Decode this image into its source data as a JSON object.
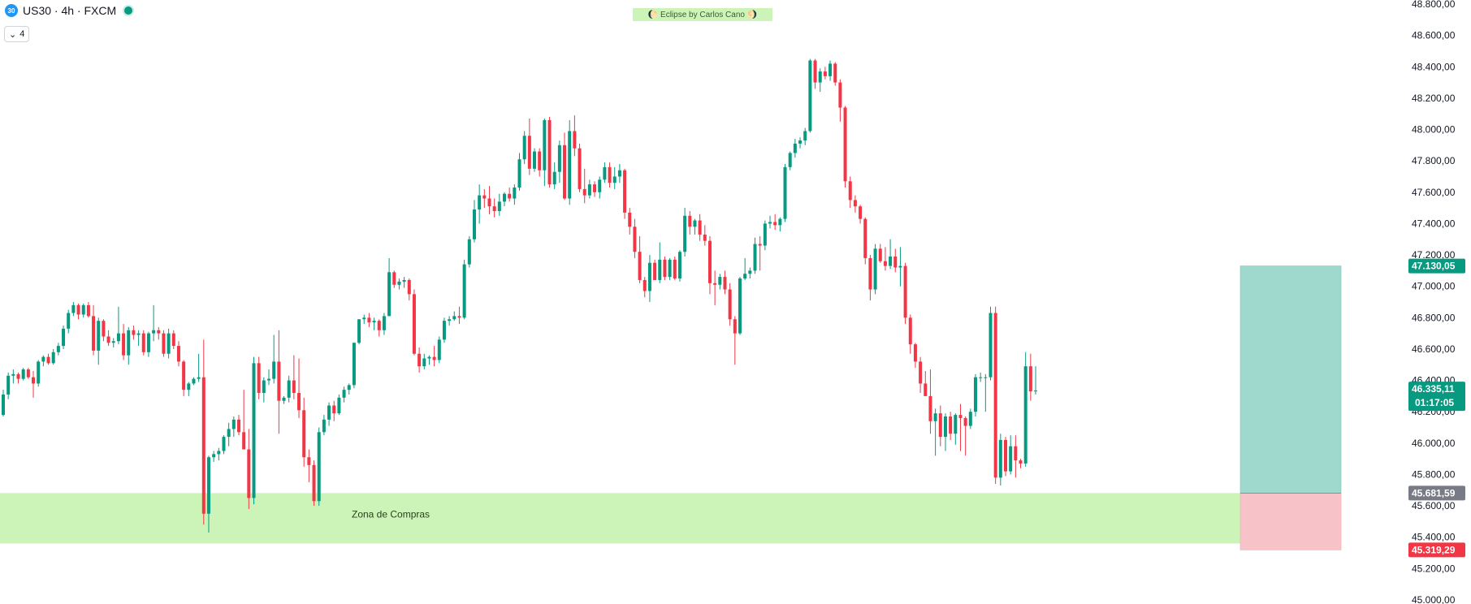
{
  "header": {
    "symbol_badge": "30",
    "title": "US30 · 4h · FXCM",
    "indicator_toggle": "4"
  },
  "watermark": "🌔 Eclipse by Carlos Cano 🌖",
  "colors": {
    "up": "#089981",
    "down": "#f23645",
    "zone_fill": "#cdf4b8",
    "target_fill": "#9fd9cd",
    "stop_fill": "#f8c3c8"
  },
  "chart_data": {
    "type": "candlestick",
    "symbol": "US30",
    "timeframe": "4h",
    "y_axis": {
      "range": [
        45000,
        48800
      ],
      "ticks": [
        "45.000,00",
        "45.200,00",
        "45.400,00",
        "45.600,00",
        "45.800,00",
        "46.000,00",
        "46.200,00",
        "46.400,00",
        "46.600,00",
        "46.800,00",
        "47.000,00",
        "47.200,00",
        "47.400,00",
        "47.600,00",
        "47.800,00",
        "48.000,00",
        "48.200,00",
        "48.400,00",
        "48.600,00",
        "48.800,00"
      ]
    },
    "price_labels": {
      "target": {
        "value": 47130.05,
        "text": "47.130,05",
        "color": "#089981"
      },
      "current": {
        "value": 46335.11,
        "text": "46.335,11",
        "countdown": "01:17:05",
        "color": "#089981"
      },
      "entry": {
        "value": 45681.59,
        "text": "45.681,59",
        "color": "#787b86"
      },
      "stop": {
        "value": 45319.29,
        "text": "45.319,29",
        "color": "#f23645"
      }
    },
    "zone": {
      "label": "Zona de Compras",
      "top": 45681.59,
      "bottom": 45360
    },
    "position": {
      "entry": 45681.59,
      "target": 47130.05,
      "stop": 45319.29
    },
    "ohlc": [
      [
        46180,
        46340,
        46170,
        46310
      ],
      [
        46310,
        46450,
        46280,
        46430
      ],
      [
        46430,
        46470,
        46380,
        46440
      ],
      [
        46440,
        46450,
        46380,
        46410
      ],
      [
        46410,
        46480,
        46400,
        46470
      ],
      [
        46470,
        46480,
        46410,
        46420
      ],
      [
        46420,
        46460,
        46290,
        46380
      ],
      [
        46380,
        46530,
        46360,
        46520
      ],
      [
        46520,
        46560,
        46490,
        46550
      ],
      [
        46550,
        46570,
        46500,
        46510
      ],
      [
        46510,
        46600,
        46500,
        46580
      ],
      [
        46580,
        46640,
        46560,
        46620
      ],
      [
        46620,
        46750,
        46600,
        46730
      ],
      [
        46730,
        46850,
        46700,
        46830
      ],
      [
        46830,
        46900,
        46810,
        46880
      ],
      [
        46880,
        46890,
        46790,
        46820
      ],
      [
        46820,
        46890,
        46800,
        46880
      ],
      [
        46880,
        46900,
        46800,
        46810
      ],
      [
        46810,
        46880,
        46560,
        46590
      ],
      [
        46590,
        46800,
        46500,
        46780
      ],
      [
        46780,
        46790,
        46650,
        46680
      ],
      [
        46680,
        46720,
        46620,
        46640
      ],
      [
        46640,
        46670,
        46610,
        46650
      ],
      [
        46650,
        46870,
        46630,
        46700
      ],
      [
        46700,
        46760,
        46530,
        46560
      ],
      [
        46560,
        46740,
        46500,
        46720
      ],
      [
        46720,
        46750,
        46660,
        46690
      ],
      [
        46690,
        46720,
        46620,
        46700
      ],
      [
        46700,
        46720,
        46560,
        46580
      ],
      [
        46580,
        46710,
        46550,
        46700
      ],
      [
        46700,
        46880,
        46650,
        46720
      ],
      [
        46720,
        46740,
        46660,
        46700
      ],
      [
        46700,
        46720,
        46550,
        46570
      ],
      [
        46570,
        46730,
        46540,
        46700
      ],
      [
        46700,
        46720,
        46600,
        46620
      ],
      [
        46620,
        46650,
        46490,
        46520
      ],
      [
        46520,
        46530,
        46300,
        46340
      ],
      [
        46340,
        46390,
        46300,
        46380
      ],
      [
        46380,
        46420,
        46370,
        46410
      ],
      [
        46410,
        46570,
        46390,
        46420
      ],
      [
        46420,
        46660,
        45480,
        45550
      ],
      [
        45550,
        45920,
        45430,
        45910
      ],
      [
        45910,
        45950,
        45880,
        45930
      ],
      [
        45930,
        45970,
        45890,
        45950
      ],
      [
        45950,
        46050,
        45930,
        46040
      ],
      [
        46040,
        46130,
        45980,
        46090
      ],
      [
        46090,
        46170,
        46040,
        46150
      ],
      [
        46150,
        46180,
        46050,
        46070
      ],
      [
        46070,
        46340,
        45980,
        45960
      ],
      [
        45960,
        46090,
        45580,
        45650
      ],
      [
        45650,
        46550,
        45610,
        46510
      ],
      [
        46510,
        46550,
        46280,
        46320
      ],
      [
        46320,
        46420,
        46260,
        46400
      ],
      [
        46400,
        46470,
        46370,
        46410
      ],
      [
        46410,
        46690,
        46380,
        46520
      ],
      [
        46520,
        46720,
        46060,
        46270
      ],
      [
        46270,
        46300,
        46250,
        46290
      ],
      [
        46290,
        46430,
        46260,
        46400
      ],
      [
        46400,
        46560,
        46280,
        46320
      ],
      [
        46320,
        46540,
        46160,
        46210
      ],
      [
        46210,
        46290,
        45850,
        45910
      ],
      [
        45910,
        45960,
        45750,
        45860
      ],
      [
        45860,
        45890,
        45600,
        45630
      ],
      [
        45630,
        46100,
        45600,
        46070
      ],
      [
        46070,
        46180,
        46050,
        46150
      ],
      [
        46150,
        46260,
        46110,
        46240
      ],
      [
        46240,
        46270,
        46140,
        46190
      ],
      [
        46190,
        46310,
        46180,
        46290
      ],
      [
        46290,
        46360,
        46260,
        46340
      ],
      [
        46340,
        46380,
        46310,
        46370
      ],
      [
        46370,
        46640,
        46350,
        46640
      ],
      [
        46640,
        46790,
        46630,
        46790
      ],
      [
        46790,
        46820,
        46760,
        46800
      ],
      [
        46800,
        46830,
        46740,
        46770
      ],
      [
        46770,
        46800,
        46720,
        46780
      ],
      [
        46780,
        46790,
        46680,
        46720
      ],
      [
        46720,
        46830,
        46690,
        46810
      ],
      [
        46810,
        47180,
        46810,
        47090
      ],
      [
        47090,
        47100,
        46990,
        47010
      ],
      [
        47010,
        47050,
        46980,
        47030
      ],
      [
        47030,
        47060,
        46990,
        47040
      ],
      [
        47040,
        47050,
        46910,
        46950
      ],
      [
        46950,
        46980,
        46560,
        46570
      ],
      [
        46570,
        46610,
        46450,
        46490
      ],
      [
        46490,
        46570,
        46470,
        46540
      ],
      [
        46540,
        46560,
        46500,
        46550
      ],
      [
        46550,
        46620,
        46490,
        46530
      ],
      [
        46530,
        46680,
        46510,
        46660
      ],
      [
        46660,
        46800,
        46640,
        46780
      ],
      [
        46780,
        46810,
        46750,
        46790
      ],
      [
        46790,
        46840,
        46780,
        46810
      ],
      [
        46810,
        46870,
        46760,
        46800
      ],
      [
        46800,
        47170,
        46790,
        47140
      ],
      [
        47140,
        47320,
        47120,
        47300
      ],
      [
        47300,
        47550,
        47280,
        47490
      ],
      [
        47490,
        47650,
        47400,
        47580
      ],
      [
        47580,
        47620,
        47500,
        47560
      ],
      [
        47560,
        47640,
        47460,
        47510
      ],
      [
        47510,
        47560,
        47440,
        47480
      ],
      [
        47480,
        47590,
        47450,
        47540
      ],
      [
        47540,
        47600,
        47510,
        47590
      ],
      [
        47590,
        47630,
        47540,
        47560
      ],
      [
        47560,
        47650,
        47520,
        47630
      ],
      [
        47630,
        47850,
        47610,
        47810
      ],
      [
        47810,
        47990,
        47780,
        47960
      ],
      [
        47960,
        48070,
        47710,
        47750
      ],
      [
        47750,
        47880,
        47730,
        47860
      ],
      [
        47860,
        47880,
        47700,
        47740
      ],
      [
        47740,
        48070,
        47640,
        48060
      ],
      [
        48060,
        48080,
        47630,
        47650
      ],
      [
        47650,
        47790,
        47620,
        47730
      ],
      [
        47730,
        47930,
        47660,
        47900
      ],
      [
        47900,
        47980,
        47550,
        47560
      ],
      [
        47560,
        48060,
        47520,
        47990
      ],
      [
        47990,
        48090,
        47830,
        47880
      ],
      [
        47880,
        47910,
        47600,
        47620
      ],
      [
        47620,
        47750,
        47530,
        47580
      ],
      [
        47580,
        47680,
        47560,
        47650
      ],
      [
        47650,
        47670,
        47570,
        47600
      ],
      [
        47600,
        47700,
        47560,
        47680
      ],
      [
        47680,
        47790,
        47660,
        47760
      ],
      [
        47760,
        47790,
        47630,
        47660
      ],
      [
        47660,
        47760,
        47620,
        47700
      ],
      [
        47700,
        47780,
        47660,
        47740
      ],
      [
        47740,
        47750,
        47430,
        47470
      ],
      [
        47470,
        47500,
        47330,
        47380
      ],
      [
        47380,
        47430,
        47180,
        47220
      ],
      [
        47220,
        47320,
        47020,
        47040
      ],
      [
        47040,
        47060,
        46930,
        46970
      ],
      [
        46970,
        47200,
        46900,
        47150
      ],
      [
        47150,
        47170,
        47040,
        47040
      ],
      [
        47040,
        47280,
        47020,
        47170
      ],
      [
        47170,
        47190,
        47040,
        47060
      ],
      [
        47060,
        47180,
        47040,
        47170
      ],
      [
        47170,
        47190,
        47040,
        47050
      ],
      [
        47050,
        47230,
        47030,
        47220
      ],
      [
        47220,
        47500,
        47190,
        47450
      ],
      [
        47450,
        47480,
        47330,
        47380
      ],
      [
        47380,
        47430,
        47330,
        47420
      ],
      [
        47420,
        47460,
        47290,
        47330
      ],
      [
        47330,
        47390,
        47260,
        47290
      ],
      [
        47290,
        47320,
        46950,
        47020
      ],
      [
        47020,
        47100,
        46880,
        47010
      ],
      [
        47010,
        47080,
        46980,
        47060
      ],
      [
        47060,
        47100,
        46950,
        46980
      ],
      [
        46980,
        47020,
        46750,
        46790
      ],
      [
        46790,
        46810,
        46500,
        46700
      ],
      [
        46700,
        47060,
        46690,
        47050
      ],
      [
        47050,
        47180,
        47040,
        47080
      ],
      [
        47080,
        47120,
        47050,
        47100
      ],
      [
        47100,
        47310,
        47080,
        47270
      ],
      [
        47270,
        47320,
        47100,
        47260
      ],
      [
        47260,
        47420,
        47230,
        47400
      ],
      [
        47400,
        47450,
        47370,
        47410
      ],
      [
        47410,
        47460,
        47360,
        47390
      ],
      [
        47390,
        47440,
        47350,
        47430
      ],
      [
        47430,
        47780,
        47410,
        47760
      ],
      [
        47760,
        47860,
        47740,
        47850
      ],
      [
        47850,
        47940,
        47820,
        47910
      ],
      [
        47910,
        47950,
        47880,
        47930
      ],
      [
        47930,
        48010,
        47900,
        47990
      ],
      [
        47990,
        48450,
        47980,
        48440
      ],
      [
        48440,
        48450,
        48260,
        48300
      ],
      [
        48300,
        48390,
        48240,
        48370
      ],
      [
        48370,
        48400,
        48320,
        48340
      ],
      [
        48340,
        48440,
        48310,
        48420
      ],
      [
        48420,
        48430,
        48280,
        48300
      ],
      [
        48300,
        48320,
        48050,
        48140
      ],
      [
        48140,
        48150,
        47630,
        47670
      ],
      [
        47670,
        47700,
        47500,
        47550
      ],
      [
        47550,
        47580,
        47470,
        47510
      ],
      [
        47510,
        47520,
        47400,
        47430
      ],
      [
        47430,
        47440,
        47140,
        47180
      ],
      [
        47180,
        47200,
        46910,
        46980
      ],
      [
        46980,
        47270,
        46950,
        47240
      ],
      [
        47240,
        47270,
        47150,
        47160
      ],
      [
        47160,
        47250,
        47100,
        47130
      ],
      [
        47130,
        47300,
        47110,
        47190
      ],
      [
        47190,
        47240,
        47090,
        47120
      ],
      [
        47120,
        47250,
        47000,
        47130
      ],
      [
        47130,
        47150,
        46760,
        46800
      ],
      [
        46800,
        46820,
        46570,
        46630
      ],
      [
        46630,
        46640,
        46480,
        46520
      ],
      [
        46520,
        46550,
        46320,
        46380
      ],
      [
        46380,
        46460,
        46300,
        46300
      ],
      [
        46300,
        46470,
        46060,
        46140
      ],
      [
        46140,
        46220,
        45920,
        46190
      ],
      [
        46190,
        46240,
        45980,
        46040
      ],
      [
        46040,
        46190,
        45950,
        46170
      ],
      [
        46170,
        46200,
        46020,
        46060
      ],
      [
        46060,
        46190,
        45990,
        46180
      ],
      [
        46180,
        46250,
        45950,
        46160
      ],
      [
        46160,
        46170,
        45920,
        46110
      ],
      [
        46110,
        46220,
        46090,
        46200
      ],
      [
        46200,
        46440,
        46170,
        46420
      ],
      [
        46420,
        46450,
        46390,
        46420
      ],
      [
        46420,
        46440,
        46200,
        46420
      ],
      [
        46420,
        46870,
        46400,
        46830
      ],
      [
        46830,
        46870,
        45740,
        45780
      ],
      [
        45780,
        46060,
        45730,
        46020
      ],
      [
        46020,
        46040,
        45790,
        45820
      ],
      [
        45820,
        46050,
        45800,
        45980
      ],
      [
        45980,
        46050,
        45780,
        45890
      ],
      [
        45890,
        45900,
        45840,
        45870
      ],
      [
        45870,
        46580,
        45850,
        46490
      ],
      [
        46490,
        46570,
        46270,
        46330
      ],
      [
        46330,
        46490,
        46310,
        46335
      ]
    ]
  }
}
